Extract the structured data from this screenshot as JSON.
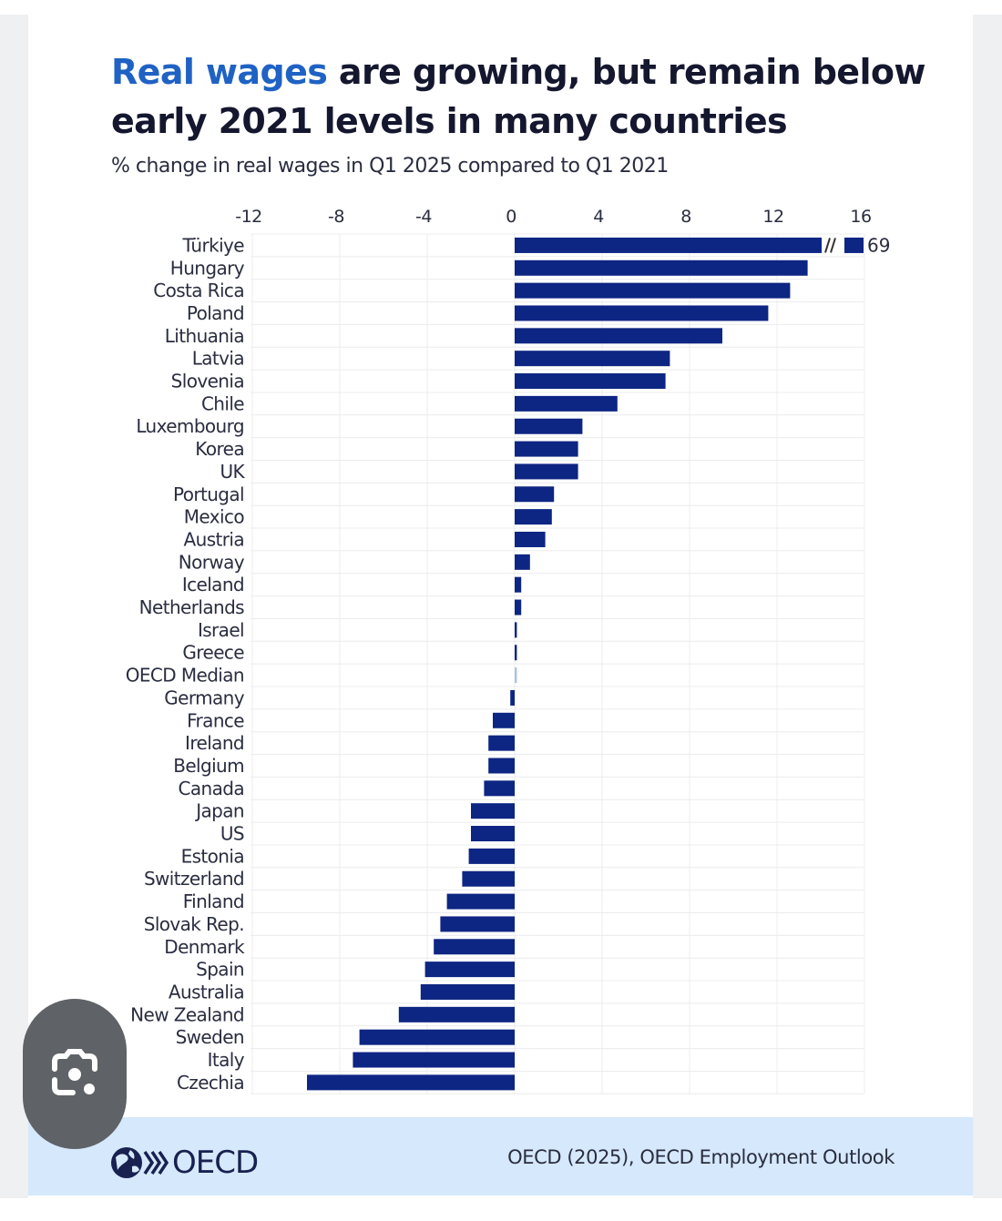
{
  "page": {
    "title_accent": "Real wages",
    "title_rest": " are growing, but remain below early 2021 levels in many countries",
    "subtitle": "% change in real wages in Q1 2025 compared to Q1 2021",
    "logo_text": "OECD",
    "source": "OECD (2025), OECD Employment Outlook",
    "colors": {
      "bar": "#0d2583",
      "median_bar": "#a9c4e3",
      "accent": "#1f62c4",
      "footer_bg": "#d6e8fb"
    },
    "overlay_button": {
      "icon": "google-lens-icon"
    }
  },
  "chart_data": {
    "type": "bar",
    "orientation": "horizontal",
    "title": "Real wages are growing, but remain below early 2021 levels in many countries",
    "subtitle": "% change in real wages in Q1 2025 compared to Q1 2021",
    "xlabel": "",
    "ylabel": "",
    "xlim": [
      -12,
      16
    ],
    "xticks": [
      -12,
      -8,
      -4,
      0,
      4,
      8,
      12,
      16
    ],
    "xtick_labels": [
      "-12",
      "-8",
      "-4",
      "0",
      "4",
      "8",
      "12",
      "16"
    ],
    "grid": true,
    "axis_position": "top",
    "categories": [
      "Türkiye",
      "Hungary",
      "Costa Rica",
      "Poland",
      "Lithuania",
      "Latvia",
      "Slovenia",
      "Chile",
      "Luxembourg",
      "Korea",
      "UK",
      "Portugal",
      "Mexico",
      "Austria",
      "Norway",
      "Iceland",
      "Netherlands",
      "Israel",
      "Greece",
      "OECD Median",
      "Germany",
      "France",
      "Ireland",
      "Belgium",
      "Canada",
      "Japan",
      "US",
      "Estonia",
      "Switzerland",
      "Finland",
      "Slovak Rep.",
      "Denmark",
      "Spain",
      "Australia",
      "New Zealand",
      "Sweden",
      "Italy",
      "Czechia"
    ],
    "values": [
      69,
      13.4,
      12.6,
      11.6,
      9.5,
      7.1,
      6.9,
      4.7,
      3.1,
      2.9,
      2.9,
      1.8,
      1.7,
      1.4,
      0.7,
      0.3,
      0.3,
      0.1,
      0.1,
      0.1,
      -0.2,
      -1.0,
      -1.2,
      -1.2,
      -1.4,
      -2.0,
      -2.0,
      -2.1,
      -2.4,
      -3.1,
      -3.4,
      -3.7,
      -4.1,
      -4.3,
      -5.3,
      -7.1,
      -7.4,
      -9.5
    ],
    "highlight": {
      "category": "OECD Median",
      "color": "#a9c4e3"
    },
    "axis_break": {
      "category": "Türkiye",
      "label": "69"
    }
  }
}
